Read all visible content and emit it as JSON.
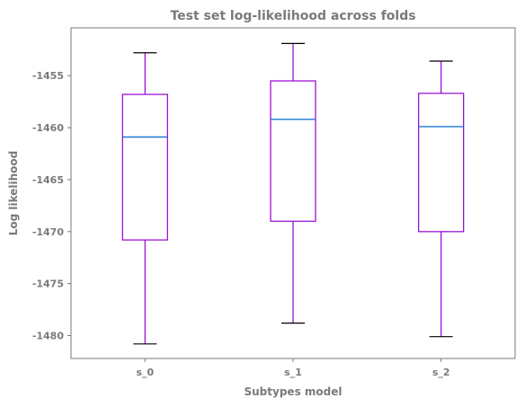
{
  "chart_data": {
    "type": "box",
    "title": "Test set log-likelihood across folds",
    "xlabel": "Subtypes model",
    "ylabel": "Log likelihood",
    "categories": [
      "s_0",
      "s_1",
      "s_2"
    ],
    "boxes": [
      {
        "name": "s_0",
        "whisker_low": -1480.8,
        "q1": -1470.8,
        "median": -1460.9,
        "q3": -1456.8,
        "whisker_high": -1452.8
      },
      {
        "name": "s_1",
        "whisker_low": -1478.8,
        "q1": -1469.0,
        "median": -1459.2,
        "q3": -1455.5,
        "whisker_high": -1451.9
      },
      {
        "name": "s_2",
        "whisker_low": -1480.1,
        "q1": -1470.0,
        "median": -1459.9,
        "q3": -1456.7,
        "whisker_high": -1453.6
      }
    ],
    "yticks": [
      -1480,
      -1475,
      -1470,
      -1465,
      -1460,
      -1455
    ],
    "ytick_labels": [
      "-1480",
      "-1475",
      "-1470",
      "-1465",
      "-1460",
      "-1455"
    ],
    "ylim": [
      -1482.2,
      -1450.4
    ],
    "grid": false,
    "legend": "none",
    "colors": {
      "box": "#9400d3",
      "whisker": "#9400d3",
      "median": "#1f77d4",
      "cap": "#000000",
      "text": "#7a7a7a",
      "frame": "#7a7a7a"
    }
  }
}
